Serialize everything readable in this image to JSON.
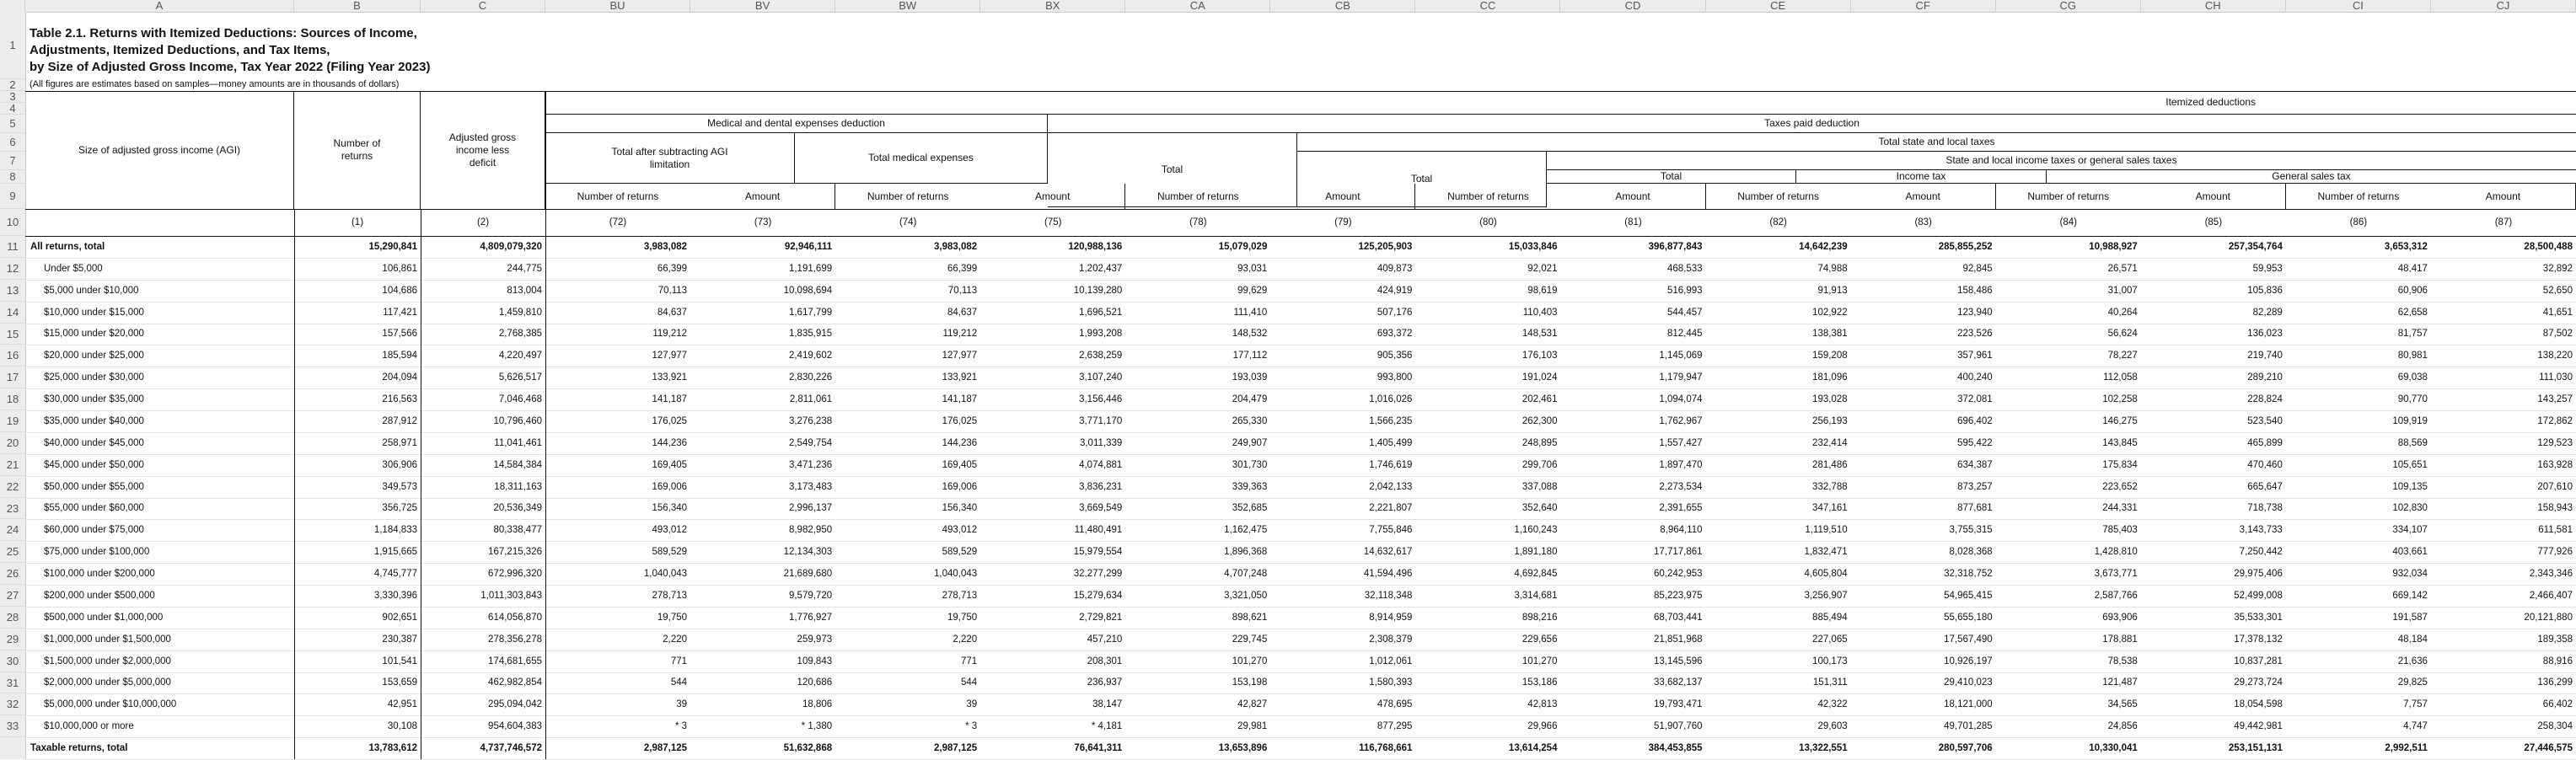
{
  "column_letters": [
    "A",
    "B",
    "C",
    "BU",
    "BV",
    "BW",
    "BX",
    "CA",
    "CB",
    "CC",
    "CD",
    "CE",
    "CF",
    "CG",
    "CH",
    "CI",
    "CJ"
  ],
  "row_numbers": [
    "1",
    "2",
    "3",
    "4",
    "5",
    "6",
    "7",
    "8",
    "9",
    "10",
    "11",
    "12",
    "13",
    "14",
    "15",
    "16",
    "17",
    "18",
    "19",
    "20",
    "21",
    "22",
    "23",
    "24",
    "25",
    "26",
    "27",
    "28",
    "29",
    "30",
    "31",
    "32",
    "33"
  ],
  "title_lines": [
    "Table 2.1.  Returns with Itemized Deductions: Sources of Income,",
    "Adjustments, Itemized Deductions, and Tax Items,",
    "by Size of Adjusted Gross Income, Tax Year 2022 (Filing Year 2023)"
  ],
  "note": "(All figures are estimates based on samples—money amounts are in thousands of dollars)",
  "headers": {
    "agi": "Size of adjusted gross income (AGI)",
    "num_returns": "Number of returns",
    "agi_less_deficit": "Adjusted gross income less deficit",
    "itemized": "Itemized deductions",
    "medical": "Medical and dental expenses deduction",
    "taxes_paid": "Taxes paid deduction",
    "total_after": "Total after subtracting AGI limitation",
    "total_medical": "Total medical expenses",
    "total": "Total",
    "total_sl": "Total state and local taxes",
    "sl_income_sales": "State and local income taxes or general sales taxes",
    "income_tax": "Income tax",
    "gen_sales": "General sales tax",
    "number_of_returns": "Number of returns",
    "amount": "Amount",
    "col_numbers": [
      "(1)",
      "(2)",
      "(72)",
      "(73)",
      "(74)",
      "(75)",
      "(78)",
      "(79)",
      "(80)",
      "(81)",
      "(82)",
      "(83)",
      "(84)",
      "(85)",
      "(86)",
      "(87)"
    ]
  },
  "rows": [
    {
      "label": "All returns, total",
      "bold": true,
      "v": [
        "15,290,841",
        "4,809,079,320",
        "3,983,082",
        "92,946,111",
        "3,983,082",
        "120,988,136",
        "15,079,029",
        "125,205,903",
        "15,033,846",
        "396,877,843",
        "14,642,239",
        "285,855,252",
        "10,988,927",
        "257,354,764",
        "3,653,312",
        "28,500,488"
      ]
    },
    {
      "label": "Under $5,000",
      "v": [
        "106,861",
        "244,775",
        "66,399",
        "1,191,699",
        "66,399",
        "1,202,437",
        "93,031",
        "409,873",
        "92,021",
        "468,533",
        "74,988",
        "92,845",
        "26,571",
        "59,953",
        "48,417",
        "32,892"
      ]
    },
    {
      "label": "$5,000 under $10,000",
      "v": [
        "104,686",
        "813,004",
        "70,113",
        "10,098,694",
        "70,113",
        "10,139,280",
        "99,629",
        "424,919",
        "98,619",
        "516,993",
        "91,913",
        "158,486",
        "31,007",
        "105,836",
        "60,906",
        "52,650"
      ]
    },
    {
      "label": "$10,000 under $15,000",
      "v": [
        "117,421",
        "1,459,810",
        "84,637",
        "1,617,799",
        "84,637",
        "1,696,521",
        "111,410",
        "507,176",
        "110,403",
        "544,457",
        "102,922",
        "123,940",
        "40,264",
        "82,289",
        "62,658",
        "41,651"
      ]
    },
    {
      "label": "$15,000 under $20,000",
      "v": [
        "157,566",
        "2,768,385",
        "119,212",
        "1,835,915",
        "119,212",
        "1,993,208",
        "148,532",
        "693,372",
        "148,531",
        "812,445",
        "138,381",
        "223,526",
        "56,624",
        "136,023",
        "81,757",
        "87,502"
      ]
    },
    {
      "label": "$20,000 under $25,000",
      "v": [
        "185,594",
        "4,220,497",
        "127,977",
        "2,419,602",
        "127,977",
        "2,638,259",
        "177,112",
        "905,356",
        "176,103",
        "1,145,069",
        "159,208",
        "357,961",
        "78,227",
        "219,740",
        "80,981",
        "138,220"
      ]
    },
    {
      "label": "$25,000 under $30,000",
      "v": [
        "204,094",
        "5,626,517",
        "133,921",
        "2,830,226",
        "133,921",
        "3,107,240",
        "193,039",
        "993,800",
        "191,024",
        "1,179,947",
        "181,096",
        "400,240",
        "112,058",
        "289,210",
        "69,038",
        "111,030"
      ]
    },
    {
      "label": "$30,000 under $35,000",
      "v": [
        "216,563",
        "7,046,468",
        "141,187",
        "2,811,061",
        "141,187",
        "3,156,446",
        "204,479",
        "1,016,026",
        "202,461",
        "1,094,074",
        "193,028",
        "372,081",
        "102,258",
        "228,824",
        "90,770",
        "143,257"
      ]
    },
    {
      "label": "$35,000 under $40,000",
      "v": [
        "287,912",
        "10,796,460",
        "176,025",
        "3,276,238",
        "176,025",
        "3,771,170",
        "265,330",
        "1,566,235",
        "262,300",
        "1,762,967",
        "256,193",
        "696,402",
        "146,275",
        "523,540",
        "109,919",
        "172,862"
      ]
    },
    {
      "label": "$40,000 under $45,000",
      "v": [
        "258,971",
        "11,041,461",
        "144,236",
        "2,549,754",
        "144,236",
        "3,011,339",
        "249,907",
        "1,405,499",
        "248,895",
        "1,557,427",
        "232,414",
        "595,422",
        "143,845",
        "465,899",
        "88,569",
        "129,523"
      ]
    },
    {
      "label": "$45,000 under $50,000",
      "v": [
        "306,906",
        "14,584,384",
        "169,405",
        "3,471,236",
        "169,405",
        "4,074,881",
        "301,730",
        "1,746,619",
        "299,706",
        "1,897,470",
        "281,486",
        "634,387",
        "175,834",
        "470,460",
        "105,651",
        "163,928"
      ]
    },
    {
      "label": "$50,000 under $55,000",
      "v": [
        "349,573",
        "18,311,163",
        "169,006",
        "3,173,483",
        "169,006",
        "3,836,231",
        "339,363",
        "2,042,133",
        "337,088",
        "2,273,534",
        "332,788",
        "873,257",
        "223,652",
        "665,647",
        "109,135",
        "207,610"
      ]
    },
    {
      "label": "$55,000 under $60,000",
      "v": [
        "356,725",
        "20,536,349",
        "156,340",
        "2,996,137",
        "156,340",
        "3,669,549",
        "352,685",
        "2,221,807",
        "352,640",
        "2,391,655",
        "347,161",
        "877,681",
        "244,331",
        "718,738",
        "102,830",
        "158,943"
      ]
    },
    {
      "label": "$60,000 under $75,000",
      "v": [
        "1,184,833",
        "80,338,477",
        "493,012",
        "8,982,950",
        "493,012",
        "11,480,491",
        "1,162,475",
        "7,755,846",
        "1,160,243",
        "8,964,110",
        "1,119,510",
        "3,755,315",
        "785,403",
        "3,143,733",
        "334,107",
        "611,581"
      ]
    },
    {
      "label": "$75,000 under $100,000",
      "v": [
        "1,915,665",
        "167,215,326",
        "589,529",
        "12,134,303",
        "589,529",
        "15,979,554",
        "1,896,368",
        "14,632,617",
        "1,891,180",
        "17,717,861",
        "1,832,471",
        "8,028,368",
        "1,428,810",
        "7,250,442",
        "403,661",
        "777,926"
      ]
    },
    {
      "label": "$100,000 under $200,000",
      "v": [
        "4,745,777",
        "672,996,320",
        "1,040,043",
        "21,689,680",
        "1,040,043",
        "32,277,299",
        "4,707,248",
        "41,594,496",
        "4,692,845",
        "60,242,953",
        "4,605,804",
        "32,318,752",
        "3,673,771",
        "29,975,406",
        "932,034",
        "2,343,346"
      ]
    },
    {
      "label": "$200,000 under $500,000",
      "v": [
        "3,330,396",
        "1,011,303,843",
        "278,713",
        "9,579,720",
        "278,713",
        "15,279,634",
        "3,321,050",
        "32,118,348",
        "3,314,681",
        "85,223,975",
        "3,256,907",
        "54,965,415",
        "2,587,766",
        "52,499,008",
        "669,142",
        "2,466,407"
      ]
    },
    {
      "label": "$500,000 under $1,000,000",
      "v": [
        "902,651",
        "614,056,870",
        "19,750",
        "1,776,927",
        "19,750",
        "2,729,821",
        "898,621",
        "8,914,959",
        "898,216",
        "68,703,441",
        "885,494",
        "55,655,180",
        "693,906",
        "35,533,301",
        "191,587",
        "20,121,880"
      ]
    },
    {
      "label": "$1,000,000 under $1,500,000",
      "v": [
        "230,387",
        "278,356,278",
        "2,220",
        "259,973",
        "2,220",
        "457,210",
        "229,745",
        "2,308,379",
        "229,656",
        "21,851,968",
        "227,065",
        "17,567,490",
        "178,881",
        "17,378,132",
        "48,184",
        "189,358"
      ]
    },
    {
      "label": "$1,500,000 under $2,000,000",
      "v": [
        "101,541",
        "174,681,655",
        "771",
        "109,843",
        "771",
        "208,301",
        "101,270",
        "1,012,061",
        "101,270",
        "13,145,596",
        "100,173",
        "10,926,197",
        "78,538",
        "10,837,281",
        "21,636",
        "88,916"
      ]
    },
    {
      "label": "$2,000,000 under $5,000,000",
      "v": [
        "153,659",
        "462,982,854",
        "544",
        "120,686",
        "544",
        "236,937",
        "153,198",
        "1,580,393",
        "153,186",
        "33,682,137",
        "151,311",
        "29,410,023",
        "121,487",
        "29,273,724",
        "29,825",
        "136,299"
      ]
    },
    {
      "label": "$5,000,000 under $10,000,000",
      "v": [
        "42,951",
        "295,094,042",
        "39",
        "18,806",
        "39",
        "38,147",
        "42,827",
        "478,695",
        "42,813",
        "19,793,471",
        "42,322",
        "18,121,000",
        "34,565",
        "18,054,598",
        "7,757",
        "66,402"
      ]
    },
    {
      "label": "$10,000,000 or more",
      "v": [
        "30,108",
        "954,604,383",
        "* 3",
        "* 1,380",
        "* 3",
        "* 4,181",
        "29,981",
        "877,295",
        "29,966",
        "51,907,760",
        "29,603",
        "49,701,285",
        "24,856",
        "49,442,981",
        "4,747",
        "258,304"
      ]
    },
    {
      "label": "Taxable returns, total",
      "bold": true,
      "v": [
        "13,783,612",
        "4,737,746,572",
        "2,987,125",
        "51,632,868",
        "2,987,125",
        "76,641,311",
        "13,653,896",
        "116,768,661",
        "13,614,254",
        "384,453,855",
        "13,322,551",
        "280,597,706",
        "10,330,041",
        "253,151,131",
        "2,992,511",
        "27,446,575"
      ]
    }
  ]
}
